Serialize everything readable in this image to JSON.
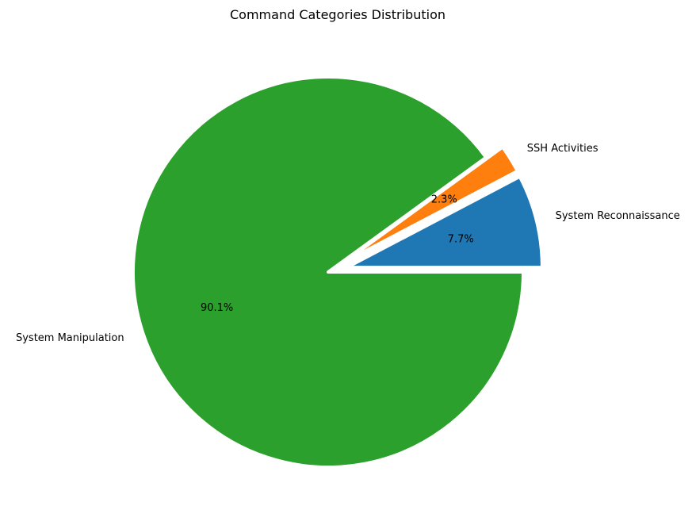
{
  "chart_data": {
    "type": "pie",
    "title": "Command Categories Distribution",
    "categories": [
      "System Reconnaissance",
      "SSH Activities",
      "System Manipulation"
    ],
    "values": [
      7.7,
      2.3,
      90.1
    ],
    "percent_labels": [
      "7.7%",
      "2.3%",
      "90.1%"
    ],
    "colors": [
      "#1f77b4",
      "#ff7f0e",
      "#2ca02c"
    ],
    "explode": [
      0.1,
      0.1,
      0
    ],
    "start_angle": 0,
    "direction": "counterclockwise",
    "legend": "none"
  }
}
